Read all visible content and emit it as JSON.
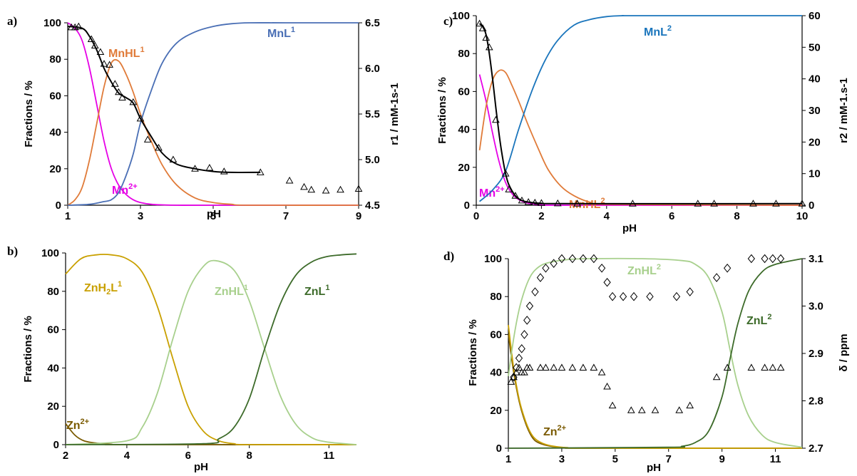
{
  "chart_data": [
    {
      "panel": "a)",
      "type": "line",
      "xlabel": "pH",
      "ylabel": "Fractions / %",
      "y2label": "r1 / mM-1s-1",
      "xlim": [
        1,
        9
      ],
      "ylim": [
        0,
        100
      ],
      "y2lim": [
        4.5,
        6.5
      ],
      "xticks": [
        "1",
        "3",
        "5",
        "7",
        "9"
      ],
      "yticks": [
        "0",
        "20",
        "40",
        "60",
        "80",
        "100"
      ],
      "y2ticks": [
        "4.5",
        "5.0",
        "5.5",
        "6.0",
        "6.5"
      ],
      "series": [
        {
          "name": "Mn2+",
          "label_parts": [
            "Mn",
            "2+"
          ],
          "color": "#e600e6",
          "x": [
            1.0,
            1.2,
            1.4,
            1.6,
            1.8,
            2.0,
            2.2,
            2.4,
            2.6,
            2.8,
            3.0,
            3.3,
            3.6,
            4.0,
            5.0,
            9.0
          ],
          "values": [
            100,
            97,
            90,
            75,
            55,
            35,
            20,
            11,
            6,
            3,
            1.5,
            0.5,
            0.2,
            0,
            0,
            0
          ]
        },
        {
          "name": "MnHL1",
          "label_parts": [
            "MnHL",
            "1"
          ],
          "color": "#e07b39",
          "x": [
            1.0,
            1.2,
            1.4,
            1.6,
            1.8,
            2.0,
            2.2,
            2.4,
            2.6,
            2.8,
            3.0,
            3.3,
            3.6,
            4.0,
            4.5,
            5.0,
            5.5,
            6.0,
            9.0
          ],
          "values": [
            0,
            3,
            10,
            25,
            45,
            65,
            78,
            79,
            72,
            62,
            50,
            35,
            22,
            11,
            4,
            1.5,
            0.5,
            0,
            0
          ]
        },
        {
          "name": "MnL1",
          "label_parts": [
            "MnL",
            "1"
          ],
          "color": "#4a6fb5",
          "x": [
            1.0,
            1.6,
            2.0,
            2.2,
            2.4,
            2.6,
            2.8,
            3.0,
            3.3,
            3.6,
            4.0,
            4.5,
            5.0,
            5.5,
            6.0,
            7.0,
            9.0
          ],
          "values": [
            0,
            0.5,
            2,
            3,
            7,
            16,
            28,
            45,
            63,
            78,
            89,
            95,
            98,
            99.5,
            100,
            100,
            100
          ]
        },
        {
          "name": "r1 fit",
          "color": "#000000",
          "axis": "right",
          "x": [
            1.0,
            1.4,
            1.6,
            1.8,
            2.0,
            2.2,
            2.4,
            2.6,
            2.8,
            3.0,
            3.3,
            3.6,
            4.0,
            4.5,
            5.0,
            5.5,
            6.3
          ],
          "values": [
            6.46,
            6.44,
            6.35,
            6.2,
            6.0,
            5.85,
            5.73,
            5.68,
            5.62,
            5.45,
            5.25,
            5.07,
            4.95,
            4.9,
            4.87,
            4.86,
            4.86
          ]
        },
        {
          "name": "r1 data",
          "marker": "triangle",
          "axis": "right",
          "x": [
            1.1,
            1.2,
            1.3,
            1.65,
            1.75,
            1.9,
            2.0,
            2.15,
            2.3,
            2.4,
            2.5,
            2.8,
            3.0,
            3.2,
            3.5,
            3.9,
            4.5,
            4.9,
            5.3,
            6.3,
            7.1,
            7.5,
            7.7,
            8.1,
            8.5,
            9.0
          ],
          "values": [
            6.45,
            6.45,
            6.46,
            6.32,
            6.25,
            6.18,
            6.05,
            6.04,
            5.83,
            5.74,
            5.68,
            5.63,
            5.45,
            5.22,
            5.13,
            5.0,
            4.9,
            4.91,
            4.87,
            4.86,
            4.77,
            4.7,
            4.67,
            4.66,
            4.67,
            4.68
          ]
        }
      ]
    },
    {
      "panel": "c)",
      "type": "line",
      "xlabel": "pH",
      "ylabel": "Fractions / %",
      "y2label": "r2 / mM-1.s-1",
      "xlim": [
        0,
        10
      ],
      "ylim": [
        0,
        100
      ],
      "y2lim": [
        0,
        60
      ],
      "xticks": [
        "0",
        "2",
        "4",
        "6",
        "8",
        "10"
      ],
      "yticks": [
        "0",
        "20",
        "40",
        "60",
        "80",
        "100"
      ],
      "y2ticks": [
        "0",
        "10",
        "20",
        "30",
        "40",
        "50",
        "60"
      ],
      "series": [
        {
          "name": "Mn2+",
          "label_parts": [
            "Mn",
            "2+"
          ],
          "color": "#e600e6",
          "x": [
            0.1,
            0.3,
            0.5,
            0.7,
            0.9,
            1.1,
            1.3,
            1.6,
            2.0,
            2.5,
            10.0
          ],
          "values": [
            69,
            55,
            38,
            23,
            12,
            6,
            3,
            1,
            0.3,
            0,
            0
          ]
        },
        {
          "name": "MnHL2",
          "label_parts": [
            "MnHL",
            "2"
          ],
          "color": "#e07b39",
          "x": [
            0.1,
            0.3,
            0.5,
            0.7,
            0.9,
            1.1,
            1.3,
            1.6,
            1.9,
            2.2,
            2.6,
            3.0,
            3.5,
            4.0,
            10.0
          ],
          "values": [
            29,
            52,
            66,
            71,
            70,
            63,
            55,
            42,
            30,
            19,
            10,
            5,
            1.5,
            0.5,
            0
          ]
        },
        {
          "name": "MnL2",
          "label_parts": [
            "MnL",
            "2"
          ],
          "color": "#1a75bc",
          "x": [
            0.1,
            0.5,
            0.9,
            1.3,
            1.7,
            2.1,
            2.5,
            3.0,
            3.5,
            4.0,
            4.5,
            5.0,
            10.0
          ],
          "values": [
            2,
            8,
            18,
            40,
            60,
            76,
            87,
            95,
            98,
            99.5,
            100,
            100,
            100
          ]
        },
        {
          "name": "r2 fit",
          "color": "#000000",
          "axis": "right",
          "x": [
            0.1,
            0.2,
            0.3,
            0.4,
            0.5,
            0.6,
            0.7,
            0.8,
            0.9,
            1.0,
            1.2,
            1.4,
            1.6,
            2.0,
            2.5,
            10.0
          ],
          "values": [
            57.5,
            56.5,
            54,
            48,
            40,
            31,
            22.5,
            15.5,
            10,
            6.5,
            3,
            1.5,
            1.0,
            0.6,
            0.5,
            0.5
          ]
        },
        {
          "name": "r2 data",
          "marker": "triangle",
          "axis": "right",
          "x": [
            0.1,
            0.2,
            0.3,
            0.4,
            0.6,
            0.9,
            1.0,
            1.2,
            1.4,
            1.6,
            1.8,
            2.0,
            2.5,
            3.1,
            4.8,
            6.8,
            7.3,
            8.5,
            9.2,
            10.0
          ],
          "values": [
            57.5,
            56,
            53,
            50,
            27,
            10,
            5,
            3,
            1.5,
            1,
            0.8,
            0.7,
            0.6,
            0.5,
            0.5,
            0.5,
            0.5,
            0.5,
            0.5,
            0.5
          ]
        }
      ]
    },
    {
      "panel": "b)",
      "type": "line",
      "xlabel": "pH",
      "ylabel": "Fractions / %",
      "xlim": [
        2,
        11.5
      ],
      "ylim": [
        0,
        100
      ],
      "xticks": [
        "2",
        "4",
        "6",
        "8",
        "11"
      ],
      "xtick_values": [
        2,
        4,
        6,
        8,
        10.6
      ],
      "yticks": [
        "0",
        "20",
        "40",
        "60",
        "80",
        "100"
      ],
      "series": [
        {
          "name": "Zn2+",
          "label_parts": [
            "Zn",
            "2+"
          ],
          "color": "#7a5a00",
          "x": [
            2.0,
            2.3,
            2.6,
            3.0,
            3.5,
            4.0,
            11.5
          ],
          "values": [
            11,
            5,
            2,
            0.8,
            0.2,
            0,
            0
          ]
        },
        {
          "name": "ZnH2L1",
          "label_parts": [
            "ZnH",
            "2",
            "L",
            "1"
          ],
          "color": "#c9a000",
          "x": [
            2.0,
            2.5,
            3.0,
            3.5,
            4.0,
            4.5,
            5.0,
            5.5,
            6.0,
            6.5,
            7.0,
            7.5,
            8.0,
            11.5
          ],
          "values": [
            89,
            97,
            99,
            99,
            97,
            90,
            72,
            45,
            20,
            7,
            2,
            0.5,
            0,
            0
          ]
        },
        {
          "name": "ZnHL1",
          "label_parts": [
            "ZnHL",
            "1"
          ],
          "color": "#a8d08d",
          "x": [
            2.0,
            4.0,
            4.5,
            5.0,
            5.5,
            6.0,
            6.5,
            6.9,
            7.5,
            8.0,
            8.5,
            9.0,
            9.5,
            10.0,
            10.5,
            11.5
          ],
          "values": [
            0,
            2,
            9,
            27,
            55,
            80,
            93,
            96,
            91,
            75,
            50,
            26,
            11,
            4,
            1.5,
            0
          ]
        },
        {
          "name": "ZnL1",
          "label_parts": [
            "ZnL",
            "1"
          ],
          "color": "#3d6b2a",
          "x": [
            2.0,
            6.5,
            7.0,
            7.5,
            8.0,
            8.5,
            9.0,
            9.5,
            10.0,
            10.5,
            11.0,
            11.5
          ],
          "values": [
            0,
            0.5,
            3,
            9,
            24,
            50,
            73,
            88,
            95,
            98,
            99,
            99.5
          ]
        }
      ]
    },
    {
      "panel": "d)",
      "type": "line",
      "xlabel": "pH",
      "ylabel": "Fractions / %",
      "y2label": "δ / ppm",
      "xlim": [
        1,
        12
      ],
      "ylim": [
        0,
        100
      ],
      "y2lim": [
        2.7,
        3.1
      ],
      "xticks": [
        "1",
        "3",
        "5",
        "7",
        "9",
        "11"
      ],
      "yticks": [
        "0",
        "20",
        "40",
        "60",
        "80",
        "100"
      ],
      "y2ticks": [
        "2.7",
        "2.8",
        "2.9",
        "3.0",
        "3.1"
      ],
      "series": [
        {
          "name": "Zn2+",
          "label_parts": [
            "Zn",
            "2+"
          ],
          "color": "#7a5a00",
          "x": [
            1.0,
            1.2,
            1.4,
            1.6,
            1.8,
            2.0,
            2.3,
            2.7,
            3.2,
            4.0,
            12.0
          ],
          "values": [
            60,
            40,
            25,
            15,
            8,
            4,
            2,
            0.8,
            0.2,
            0,
            0
          ]
        },
        {
          "name": "ZnH2L2",
          "color": "#c9a000",
          "x": [
            1.0,
            1.2,
            1.4,
            1.6,
            1.8,
            2.0,
            2.3,
            2.7,
            3.2,
            4.0,
            12.0
          ],
          "values": [
            65,
            42,
            26,
            16,
            9,
            5,
            2.5,
            1,
            0.3,
            0,
            0
          ]
        },
        {
          "name": "ZnHL2",
          "label_parts": [
            "ZnHL",
            "2"
          ],
          "color": "#a8d08d",
          "x": [
            1.0,
            1.2,
            1.4,
            1.6,
            1.8,
            2.0,
            2.3,
            2.7,
            3.2,
            4.0,
            6.0,
            7.5,
            8.0,
            8.5,
            9.0,
            9.3,
            9.6,
            10.0,
            10.5,
            11.0,
            12.0
          ],
          "values": [
            38,
            58,
            73,
            83,
            90,
            94,
            97,
            98.5,
            99.5,
            100,
            100,
            99,
            97,
            90,
            72,
            52,
            33,
            17,
            7,
            3,
            0.5
          ]
        },
        {
          "name": "ZnL2",
          "label_parts": [
            "ZnL",
            "2"
          ],
          "color": "#3d6b2a",
          "x": [
            1.0,
            7.0,
            7.5,
            8.0,
            8.5,
            9.0,
            9.3,
            9.6,
            10.0,
            10.5,
            11.0,
            12.0
          ],
          "values": [
            0,
            0.5,
            1,
            3,
            9,
            27,
            47,
            66,
            83,
            93,
            97,
            100
          ]
        },
        {
          "name": "δ data (diamonds)",
          "marker": "diamond",
          "axis": "right",
          "x": [
            1.2,
            1.3,
            1.4,
            1.5,
            1.6,
            1.7,
            1.8,
            2.0,
            2.2,
            2.4,
            2.7,
            3.0,
            3.4,
            3.8,
            4.2,
            4.5,
            4.7,
            4.9,
            5.3,
            5.7,
            6.3,
            7.3,
            7.8,
            8.8,
            9.2,
            10.1,
            10.6,
            10.9,
            11.2
          ],
          "values": [
            2.85,
            2.87,
            2.89,
            2.91,
            2.94,
            2.97,
            3.0,
            3.03,
            3.06,
            3.08,
            3.09,
            3.1,
            3.1,
            3.1,
            3.1,
            3.08,
            3.05,
            3.02,
            3.02,
            3.02,
            3.02,
            3.02,
            3.03,
            3.06,
            3.08,
            3.1,
            3.1,
            3.1,
            3.1
          ]
        },
        {
          "name": "δ data (triangles)",
          "marker": "triangle",
          "axis": "right",
          "x": [
            1.1,
            1.2,
            1.3,
            1.4,
            1.5,
            1.6,
            1.7,
            1.8,
            2.2,
            2.4,
            2.7,
            3.0,
            3.4,
            3.8,
            4.2,
            4.5,
            4.7,
            4.9,
            5.6,
            6.0,
            6.5,
            7.4,
            7.8,
            8.8,
            9.2,
            10.1,
            10.6,
            10.9,
            11.2
          ],
          "values": [
            2.84,
            2.85,
            2.86,
            2.87,
            2.86,
            2.86,
            2.87,
            2.87,
            2.87,
            2.87,
            2.87,
            2.87,
            2.87,
            2.87,
            2.87,
            2.86,
            2.83,
            2.79,
            2.78,
            2.78,
            2.78,
            2.78,
            2.79,
            2.85,
            2.87,
            2.87,
            2.87,
            2.87,
            2.87
          ]
        }
      ]
    }
  ]
}
